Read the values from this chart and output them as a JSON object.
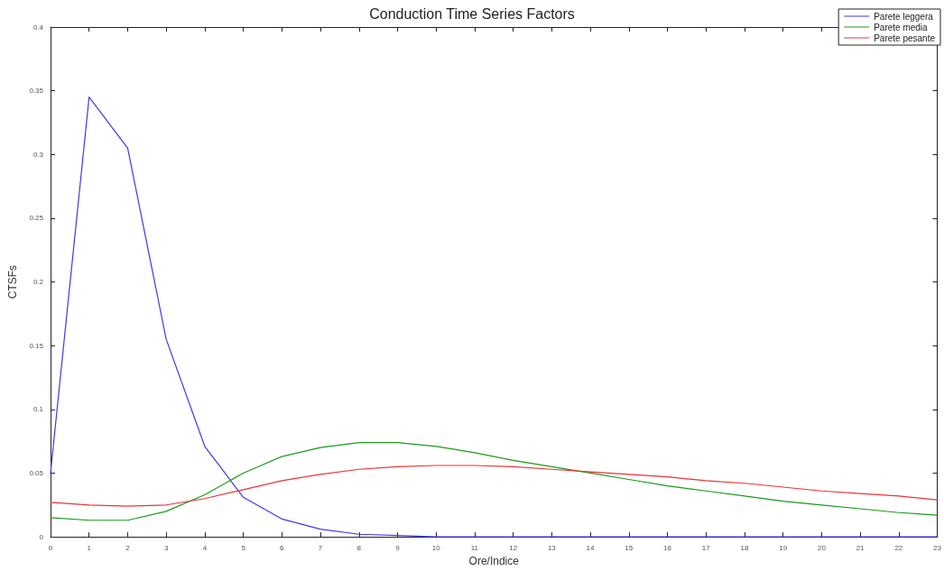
{
  "chart_data": {
    "type": "line",
    "title": "Conduction Time Series Factors",
    "xlabel": "Ore/Indice",
    "ylabel": "CTSFs",
    "x": [
      0,
      1,
      2,
      3,
      4,
      5,
      6,
      7,
      8,
      9,
      10,
      11,
      12,
      13,
      14,
      15,
      16,
      17,
      18,
      19,
      20,
      21,
      22,
      23
    ],
    "series": [
      {
        "name": "Parete leggera",
        "color": "#3a3aee",
        "values": [
          0.05,
          0.345,
          0.305,
          0.155,
          0.071,
          0.031,
          0.014,
          0.006,
          0.002,
          0.001,
          0,
          0,
          0,
          0,
          0,
          0,
          0,
          0,
          0,
          0,
          0,
          0,
          0,
          0
        ]
      },
      {
        "name": "Parete media",
        "color": "#1a9a1a",
        "values": [
          0.015,
          0.013,
          0.013,
          0.02,
          0.033,
          0.05,
          0.063,
          0.07,
          0.074,
          0.074,
          0.071,
          0.066,
          0.06,
          0.055,
          0.05,
          0.045,
          0.04,
          0.036,
          0.032,
          0.028,
          0.025,
          0.022,
          0.019,
          0.017
        ]
      },
      {
        "name": "Parete pesante",
        "color": "#ee3333",
        "values": [
          0.027,
          0.025,
          0.024,
          0.025,
          0.03,
          0.037,
          0.044,
          0.049,
          0.053,
          0.055,
          0.056,
          0.056,
          0.055,
          0.053,
          0.051,
          0.049,
          0.047,
          0.044,
          0.042,
          0.039,
          0.036,
          0.034,
          0.032,
          0.029
        ]
      }
    ],
    "xlim": [
      0,
      23
    ],
    "xticks": [
      0,
      1,
      2,
      3,
      4,
      5,
      6,
      7,
      8,
      9,
      10,
      11,
      12,
      13,
      14,
      15,
      16,
      17,
      18,
      19,
      20,
      21,
      22,
      23
    ],
    "ylim": [
      0,
      0.4
    ],
    "yticks": [
      0,
      0.05,
      0.1,
      0.15,
      0.2,
      0.25,
      0.3,
      0.35,
      0.4
    ],
    "grid": false,
    "legend": "top right",
    "marker": "none",
    "line_style": "solid"
  }
}
